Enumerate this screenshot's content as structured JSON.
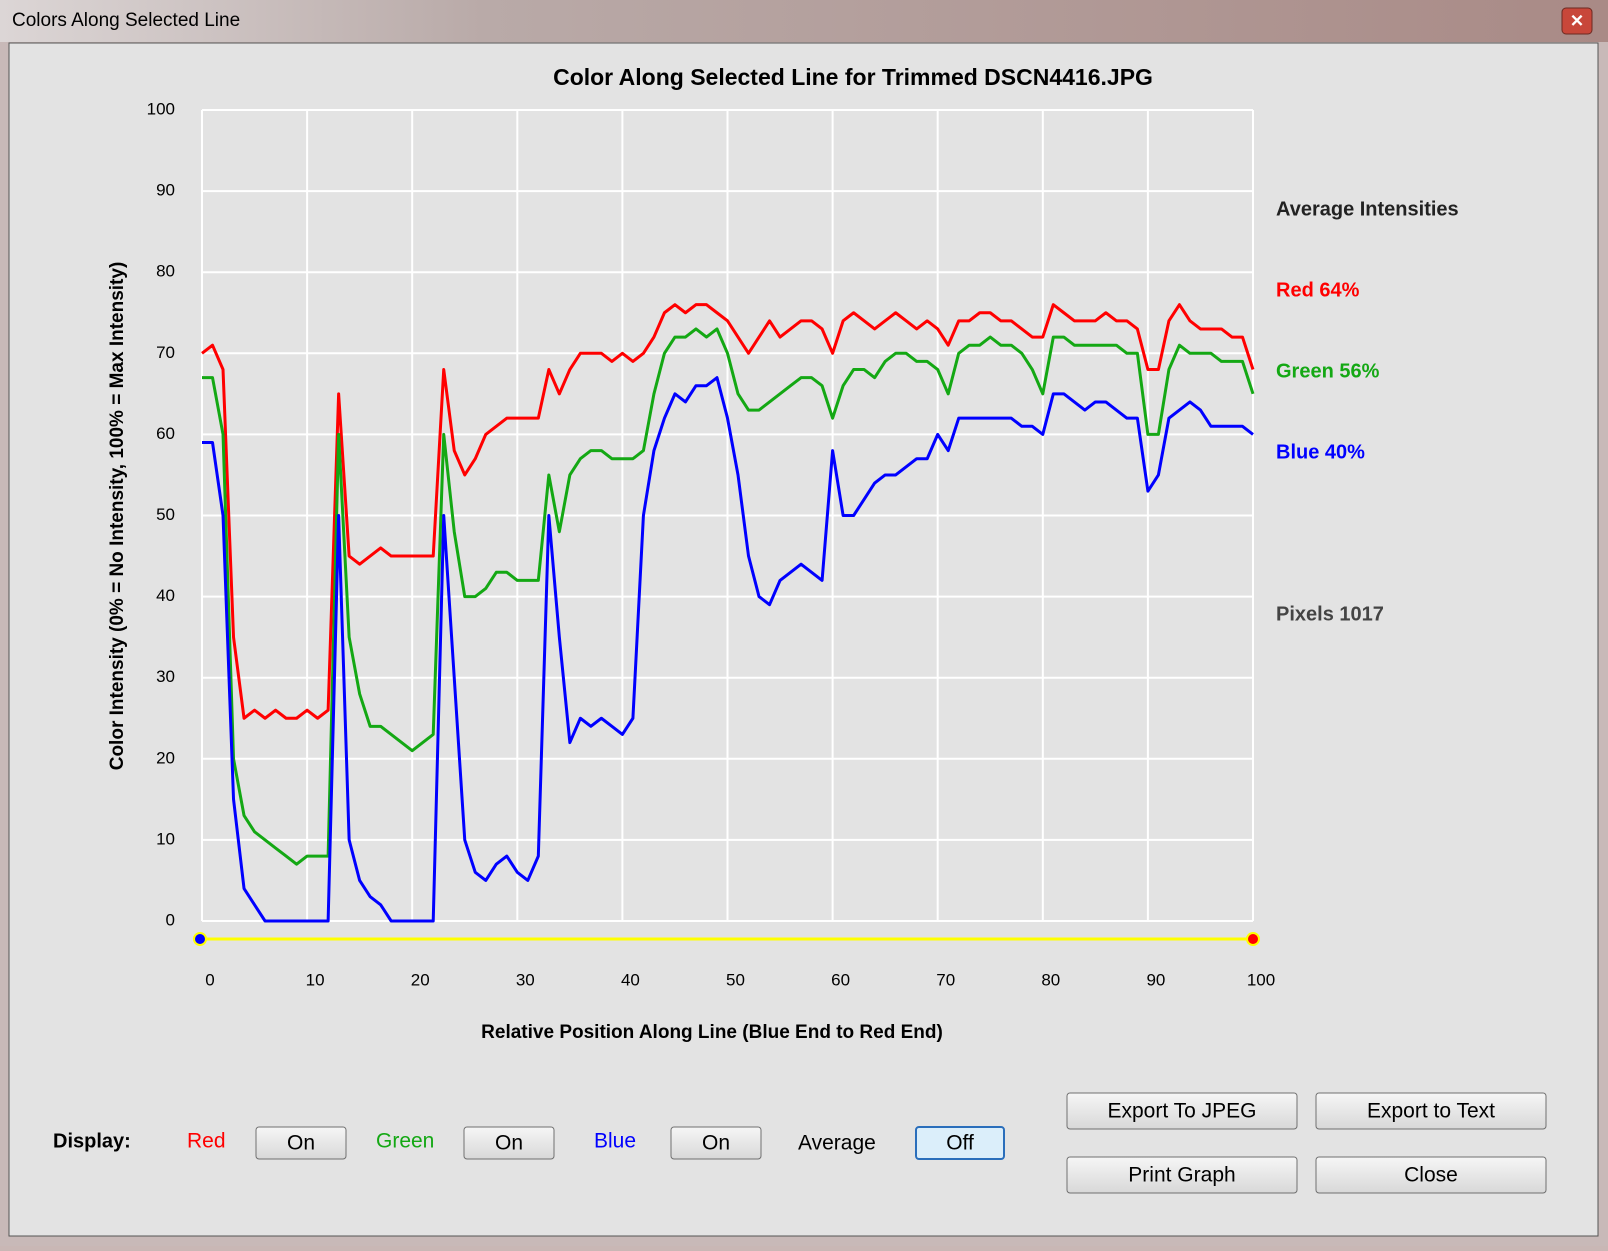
{
  "window": {
    "title": "Colors Along Selected Line"
  },
  "chart_data": {
    "type": "line",
    "title": "Color Along Selected Line for Trimmed DSCN4416.JPG",
    "x_label": "Relative Position Along Line (Blue End to Red End)",
    "y_label": "Color Intensity (0% = No Intensity, 100% = Max Intensity)",
    "x": [
      0,
      1,
      2,
      3,
      4,
      5,
      6,
      7,
      8,
      9,
      10,
      11,
      12,
      13,
      14,
      15,
      16,
      17,
      18,
      19,
      20,
      21,
      22,
      23,
      24,
      25,
      26,
      27,
      28,
      29,
      30,
      31,
      32,
      33,
      34,
      35,
      36,
      37,
      38,
      39,
      40,
      41,
      42,
      43,
      44,
      45,
      46,
      47,
      48,
      49,
      50,
      51,
      52,
      53,
      54,
      55,
      56,
      57,
      58,
      59,
      60,
      61,
      62,
      63,
      64,
      65,
      66,
      67,
      68,
      69,
      70,
      71,
      72,
      73,
      74,
      75,
      76,
      77,
      78,
      79,
      80,
      81,
      82,
      83,
      84,
      85,
      86,
      87,
      88,
      89,
      90,
      91,
      92,
      93,
      94,
      95,
      96,
      97,
      98,
      99,
      100
    ],
    "series": [
      {
        "name": "Red",
        "color": "#ff0000",
        "values": [
          70,
          71,
          68,
          35,
          25,
          26,
          25,
          26,
          25,
          25,
          26,
          25,
          26,
          65,
          45,
          44,
          45,
          46,
          45,
          45,
          45,
          45,
          45,
          68,
          58,
          55,
          57,
          60,
          61,
          62,
          62,
          62,
          62,
          68,
          65,
          68,
          70,
          70,
          70,
          69,
          70,
          69,
          70,
          72,
          75,
          76,
          75,
          76,
          76,
          75,
          74,
          72,
          70,
          72,
          74,
          72,
          73,
          74,
          74,
          73,
          70,
          74,
          75,
          74,
          73,
          74,
          75,
          74,
          73,
          74,
          73,
          71,
          74,
          74,
          75,
          75,
          74,
          74,
          73,
          72,
          72,
          76,
          75,
          74,
          74,
          74,
          75,
          74,
          74,
          73,
          68,
          68,
          74,
          76,
          74,
          73,
          73,
          73,
          72,
          72,
          68
        ]
      },
      {
        "name": "Green",
        "color": "#14a814",
        "values": [
          67,
          67,
          60,
          20,
          13,
          11,
          10,
          9,
          8,
          7,
          8,
          8,
          8,
          60,
          35,
          28,
          24,
          24,
          23,
          22,
          21,
          22,
          23,
          60,
          48,
          40,
          40,
          41,
          43,
          43,
          42,
          42,
          42,
          55,
          48,
          55,
          57,
          58,
          58,
          57,
          57,
          57,
          58,
          65,
          70,
          72,
          72,
          73,
          72,
          73,
          70,
          65,
          63,
          63,
          64,
          65,
          66,
          67,
          67,
          66,
          62,
          66,
          68,
          68,
          67,
          69,
          70,
          70,
          69,
          69,
          68,
          65,
          70,
          71,
          71,
          72,
          71,
          71,
          70,
          68,
          65,
          72,
          72,
          71,
          71,
          71,
          71,
          71,
          70,
          70,
          60,
          60,
          68,
          71,
          70,
          70,
          70,
          69,
          69,
          69,
          65
        ]
      },
      {
        "name": "Blue",
        "color": "#0000ff",
        "values": [
          59,
          59,
          50,
          15,
          4,
          2,
          0,
          0,
          0,
          0,
          0,
          0,
          0,
          50,
          10,
          5,
          3,
          2,
          0,
          0,
          0,
          0,
          0,
          50,
          30,
          10,
          6,
          5,
          7,
          8,
          6,
          5,
          8,
          50,
          35,
          22,
          25,
          24,
          25,
          24,
          23,
          25,
          50,
          58,
          62,
          65,
          64,
          66,
          66,
          67,
          62,
          55,
          45,
          40,
          39,
          42,
          43,
          44,
          43,
          42,
          58,
          50,
          50,
          52,
          54,
          55,
          55,
          56,
          57,
          57,
          60,
          58,
          62,
          62,
          62,
          62,
          62,
          62,
          61,
          61,
          60,
          65,
          65,
          64,
          63,
          64,
          64,
          63,
          62,
          62,
          53,
          55,
          62,
          63,
          64,
          63,
          61,
          61,
          61,
          61,
          60
        ]
      }
    ],
    "xlim": [
      0,
      100
    ],
    "xticks": [
      0,
      10,
      20,
      30,
      40,
      50,
      60,
      70,
      80,
      90,
      100
    ],
    "ylim": [
      0,
      100
    ],
    "yticks": [
      0,
      10,
      20,
      30,
      40,
      50,
      60,
      70,
      80,
      90,
      100
    ],
    "grid": true,
    "annotations": [
      "Average Intensities",
      "Red 64%",
      "Green 56%",
      "Blue 40%",
      "Pixels 1017"
    ]
  },
  "controls": {
    "display_label": "Display:",
    "toggles": [
      "On",
      "On",
      "On"
    ],
    "average_label": "Average",
    "average_toggle": "Off"
  },
  "buttons": [
    "Export To JPEG",
    "Export to Text",
    "Print Graph",
    "Close"
  ]
}
